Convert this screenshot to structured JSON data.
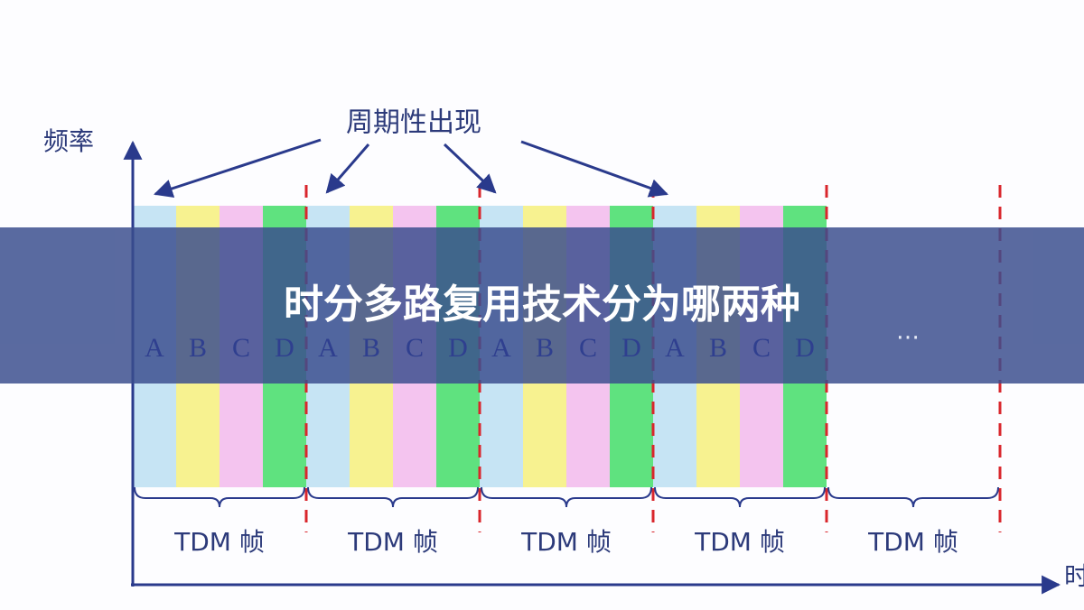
{
  "y_axis_label": "频率",
  "x_axis_label": "时",
  "annotation": "周期性出现",
  "banner_title": "时分多路复用技术分为哪两种",
  "frames": [
    {
      "slots": [
        "A",
        "B",
        "C",
        "D"
      ]
    },
    {
      "slots": [
        "A",
        "B",
        "C",
        "D"
      ]
    },
    {
      "slots": [
        "A",
        "B",
        "C",
        "D"
      ]
    },
    {
      "slots": [
        "A",
        "B",
        "C",
        "D"
      ]
    }
  ],
  "ellipsis": "…",
  "frame_labels": [
    "TDM 帧",
    "TDM 帧",
    "TDM 帧",
    "TDM 帧",
    "TDM 帧"
  ]
}
